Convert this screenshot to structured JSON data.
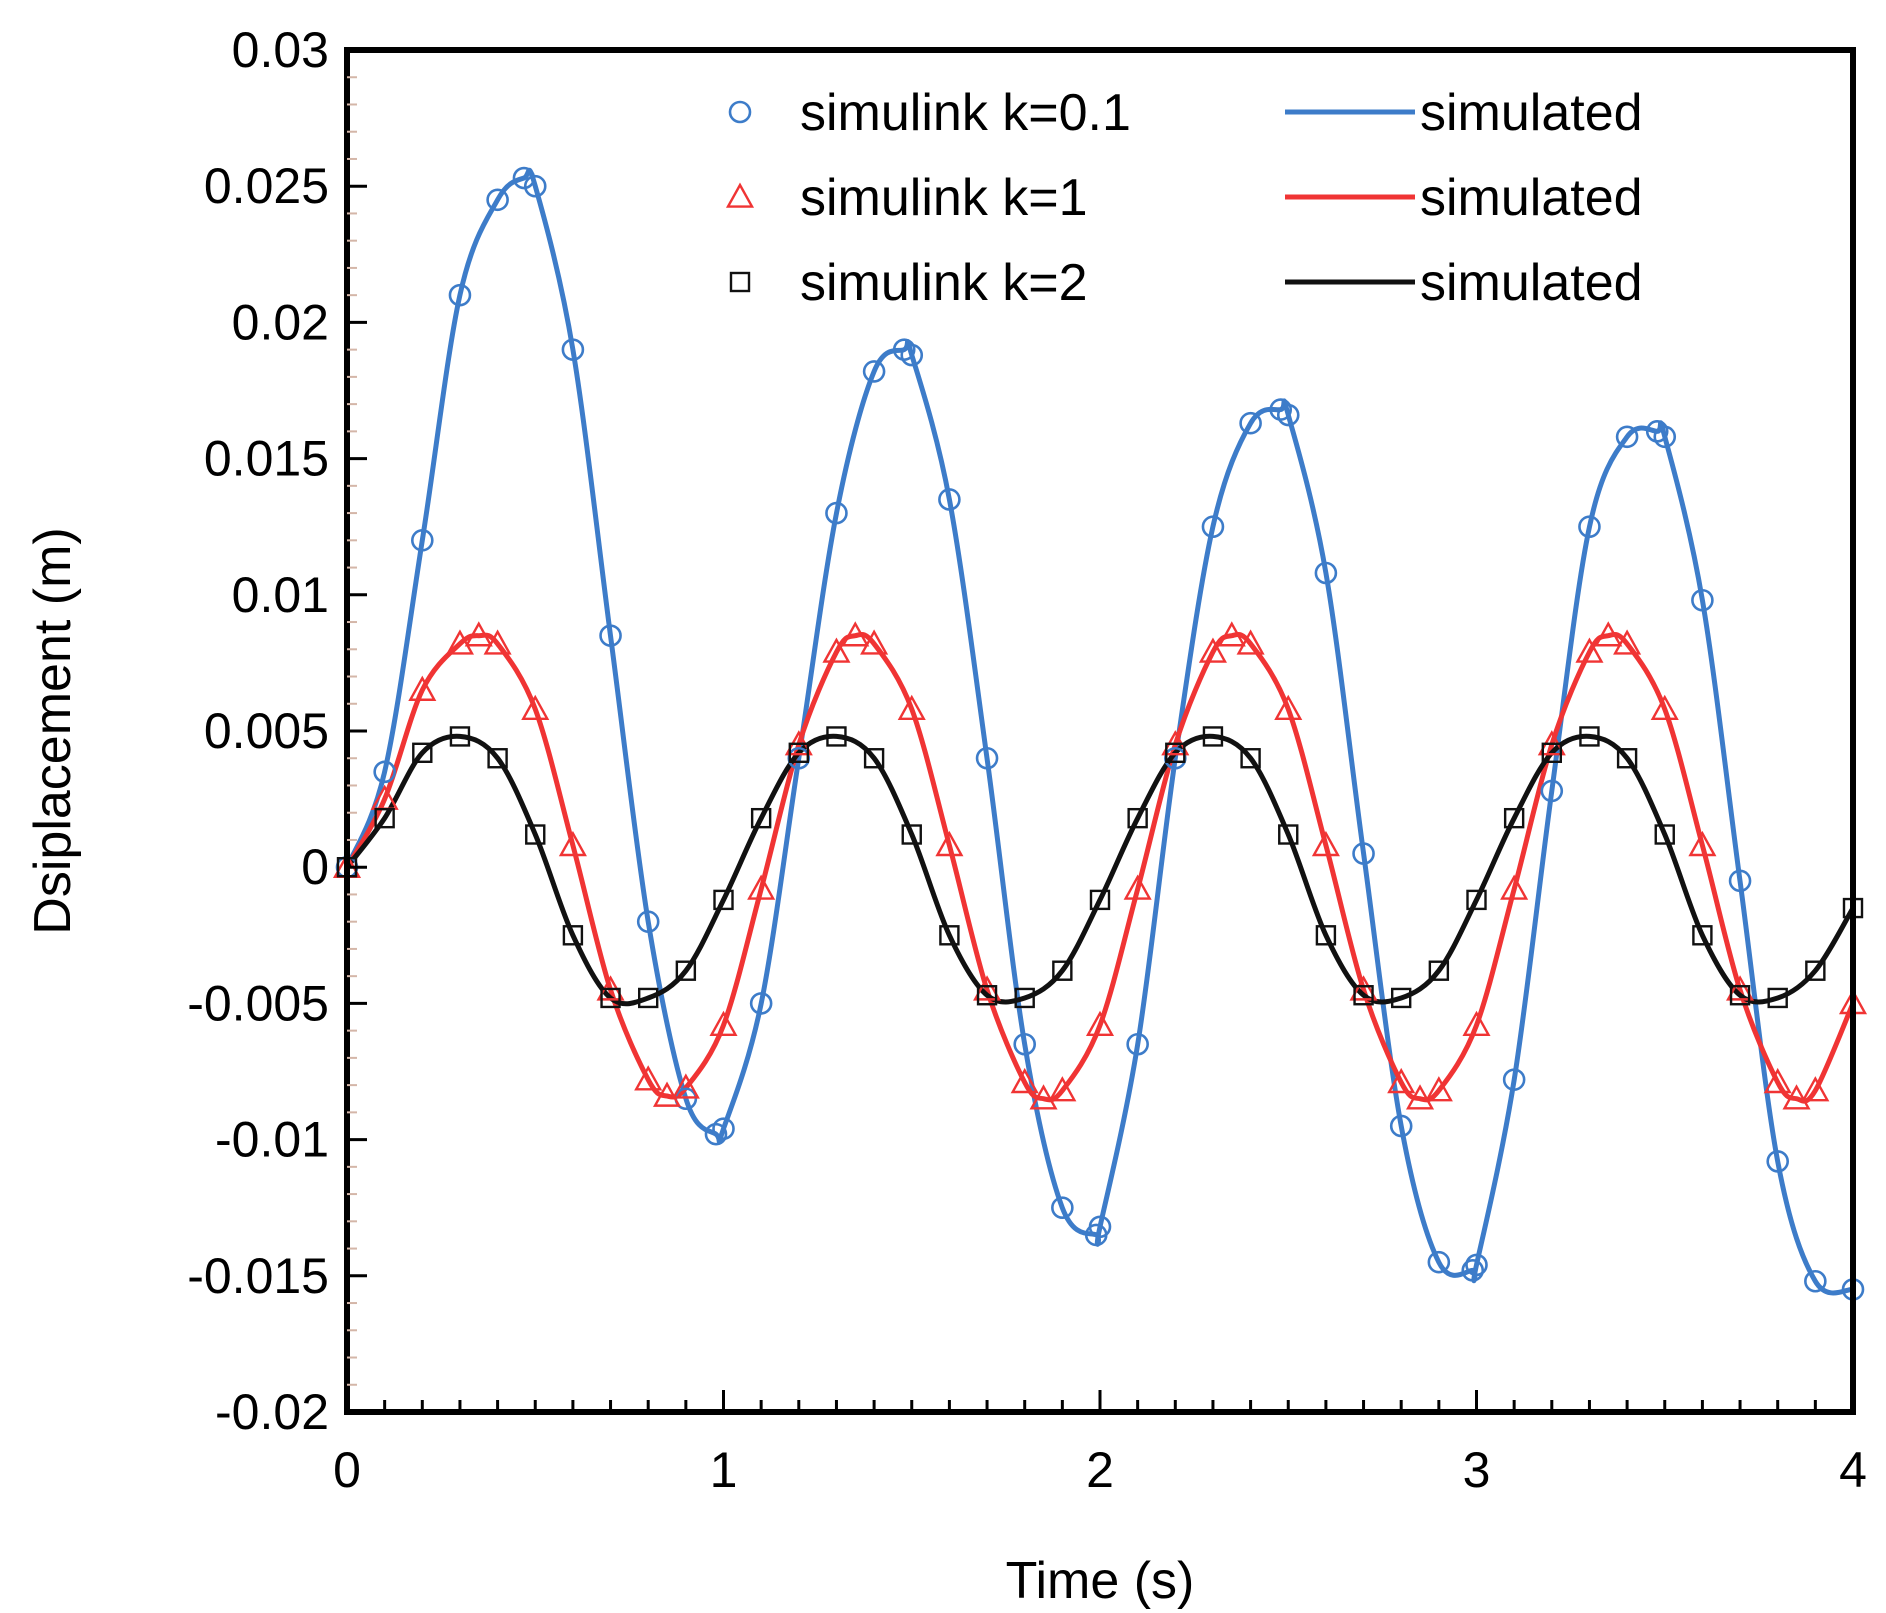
{
  "chart_data": {
    "type": "line",
    "xlabel": "Time (s)",
    "ylabel": "Dsiplacement (m)",
    "xlim": [
      0,
      4
    ],
    "ylim": [
      -0.02,
      0.03
    ],
    "x_ticks": [
      0,
      1,
      2,
      3,
      4
    ],
    "x_tick_labels": [
      "0",
      "1",
      "2",
      "3",
      "4"
    ],
    "y_ticks": [
      0.03,
      0.025,
      0.02,
      0.015,
      0.01,
      0.005,
      0,
      -0.005,
      -0.01,
      -0.015,
      -0.02
    ],
    "y_tick_labels": [
      "0.03",
      "0.025",
      "0.02",
      "0.015",
      "0.01",
      "0.005",
      "0",
      "-0.005",
      "-0.01",
      "-0.015",
      "-0.02"
    ],
    "grid": false,
    "legend_position": "top-right",
    "colors": {
      "blue": "#3d7cc9",
      "red": "#f03434",
      "black": "#111111"
    },
    "series": [
      {
        "name": "simulink k=0.1",
        "kind": "markers",
        "marker": "circle",
        "color": "#3d7cc9",
        "x": [
          0,
          0.1,
          0.2,
          0.3,
          0.4,
          0.47,
          0.5,
          0.6,
          0.7,
          0.8,
          0.9,
          0.98,
          1.0,
          1.1,
          1.2,
          1.3,
          1.4,
          1.48,
          1.5,
          1.6,
          1.7,
          1.8,
          1.9,
          1.99,
          2.0,
          2.1,
          2.2,
          2.3,
          2.4,
          2.48,
          2.5,
          2.6,
          2.7,
          2.8,
          2.9,
          2.99,
          3.0,
          3.1,
          3.2,
          3.3,
          3.4,
          3.48,
          3.5,
          3.6,
          3.7,
          3.8,
          3.9,
          4.0
        ],
        "y": [
          0,
          0.0035,
          0.012,
          0.021,
          0.0245,
          0.0253,
          0.025,
          0.019,
          0.0085,
          -0.002,
          -0.0085,
          -0.0098,
          -0.0096,
          -0.005,
          0.004,
          0.013,
          0.0182,
          0.019,
          0.0188,
          0.0135,
          0.004,
          -0.0065,
          -0.0125,
          -0.0135,
          -0.0132,
          -0.0065,
          0.004,
          0.0125,
          0.0163,
          0.0168,
          0.0166,
          0.0108,
          0.0005,
          -0.0095,
          -0.0145,
          -0.0148,
          -0.0146,
          -0.0078,
          0.0028,
          0.0125,
          0.0158,
          0.016,
          0.0158,
          0.0098,
          -0.0005,
          -0.0108,
          -0.0152,
          -0.0155
        ]
      },
      {
        "name": "simulated",
        "kind": "line",
        "color": "#3d7cc9",
        "x": [
          0,
          0.1,
          0.2,
          0.3,
          0.4,
          0.47,
          0.5,
          0.6,
          0.7,
          0.8,
          0.9,
          0.98,
          1.0,
          1.1,
          1.2,
          1.3,
          1.4,
          1.48,
          1.5,
          1.6,
          1.7,
          1.8,
          1.9,
          1.99,
          2.0,
          2.1,
          2.2,
          2.3,
          2.4,
          2.48,
          2.5,
          2.6,
          2.7,
          2.8,
          2.9,
          2.99,
          3.0,
          3.1,
          3.2,
          3.3,
          3.4,
          3.48,
          3.5,
          3.6,
          3.7,
          3.8,
          3.9,
          4.0
        ],
        "y": [
          0,
          0.0035,
          0.012,
          0.021,
          0.0245,
          0.0253,
          0.025,
          0.019,
          0.0085,
          -0.002,
          -0.0085,
          -0.0098,
          -0.0096,
          -0.005,
          0.004,
          0.013,
          0.0182,
          0.019,
          0.0188,
          0.0135,
          0.004,
          -0.0065,
          -0.0125,
          -0.0135,
          -0.0132,
          -0.0065,
          0.004,
          0.0125,
          0.0163,
          0.0168,
          0.0166,
          0.0108,
          0.0005,
          -0.0095,
          -0.0145,
          -0.0148,
          -0.0146,
          -0.0078,
          0.0028,
          0.0125,
          0.0158,
          0.016,
          0.0158,
          0.0098,
          -0.0005,
          -0.0108,
          -0.0152,
          -0.0155
        ]
      },
      {
        "name": "simulink k=1",
        "kind": "markers",
        "marker": "triangle",
        "color": "#f03434",
        "x": [
          0,
          0.1,
          0.2,
          0.3,
          0.35,
          0.4,
          0.5,
          0.6,
          0.7,
          0.8,
          0.85,
          0.9,
          1.0,
          1.1,
          1.2,
          1.3,
          1.35,
          1.4,
          1.5,
          1.6,
          1.7,
          1.8,
          1.85,
          1.9,
          2.0,
          2.1,
          2.2,
          2.3,
          2.35,
          2.4,
          2.5,
          2.6,
          2.7,
          2.8,
          2.85,
          2.9,
          3.0,
          3.1,
          3.2,
          3.3,
          3.35,
          3.4,
          3.5,
          3.6,
          3.7,
          3.8,
          3.85,
          3.9,
          4.0
        ],
        "y": [
          0,
          0.0025,
          0.0065,
          0.0082,
          0.0085,
          0.0082,
          0.0058,
          0.0008,
          -0.0045,
          -0.0078,
          -0.0084,
          -0.0081,
          -0.0058,
          -0.0008,
          0.0045,
          0.0079,
          0.0085,
          0.0082,
          0.0058,
          0.0008,
          -0.0045,
          -0.0079,
          -0.0085,
          -0.0082,
          -0.0058,
          -0.0008,
          0.0045,
          0.0079,
          0.0085,
          0.0082,
          0.0058,
          0.0008,
          -0.0045,
          -0.0079,
          -0.0085,
          -0.0082,
          -0.0058,
          -0.0008,
          0.0045,
          0.0079,
          0.0085,
          0.0082,
          0.0058,
          0.0008,
          -0.0045,
          -0.0079,
          -0.0085,
          -0.0082,
          -0.005
        ]
      },
      {
        "name": "simulated",
        "kind": "line",
        "color": "#f03434",
        "x": [
          0,
          0.1,
          0.2,
          0.3,
          0.35,
          0.4,
          0.5,
          0.6,
          0.7,
          0.8,
          0.85,
          0.9,
          1.0,
          1.1,
          1.2,
          1.3,
          1.35,
          1.4,
          1.5,
          1.6,
          1.7,
          1.8,
          1.85,
          1.9,
          2.0,
          2.1,
          2.2,
          2.3,
          2.35,
          2.4,
          2.5,
          2.6,
          2.7,
          2.8,
          2.85,
          2.9,
          3.0,
          3.1,
          3.2,
          3.3,
          3.35,
          3.4,
          3.5,
          3.6,
          3.7,
          3.8,
          3.85,
          3.9,
          4.0
        ],
        "y": [
          0,
          0.0025,
          0.0065,
          0.0082,
          0.0085,
          0.0082,
          0.0058,
          0.0008,
          -0.0045,
          -0.0078,
          -0.0084,
          -0.0081,
          -0.0058,
          -0.0008,
          0.0045,
          0.0079,
          0.0085,
          0.0082,
          0.0058,
          0.0008,
          -0.0045,
          -0.0079,
          -0.0085,
          -0.0082,
          -0.0058,
          -0.0008,
          0.0045,
          0.0079,
          0.0085,
          0.0082,
          0.0058,
          0.0008,
          -0.0045,
          -0.0079,
          -0.0085,
          -0.0082,
          -0.0058,
          -0.0008,
          0.0045,
          0.0079,
          0.0085,
          0.0082,
          0.0058,
          0.0008,
          -0.0045,
          -0.0079,
          -0.0085,
          -0.0082,
          -0.005
        ]
      },
      {
        "name": "simulink k=2",
        "kind": "markers",
        "marker": "square",
        "color": "#111111",
        "x": [
          0,
          0.1,
          0.2,
          0.3,
          0.4,
          0.5,
          0.6,
          0.7,
          0.8,
          0.9,
          1.0,
          1.1,
          1.2,
          1.3,
          1.4,
          1.5,
          1.6,
          1.7,
          1.8,
          1.9,
          2.0,
          2.1,
          2.2,
          2.3,
          2.4,
          2.5,
          2.6,
          2.7,
          2.8,
          2.9,
          3.0,
          3.1,
          3.2,
          3.3,
          3.4,
          3.5,
          3.6,
          3.7,
          3.8,
          3.9,
          4.0
        ],
        "y": [
          0,
          0.0018,
          0.0042,
          0.0048,
          0.004,
          0.0012,
          -0.0025,
          -0.0048,
          -0.0048,
          -0.0038,
          -0.0012,
          0.0018,
          0.0042,
          0.0048,
          0.004,
          0.0012,
          -0.0025,
          -0.0047,
          -0.0048,
          -0.0038,
          -0.0012,
          0.0018,
          0.0042,
          0.0048,
          0.004,
          0.0012,
          -0.0025,
          -0.0047,
          -0.0048,
          -0.0038,
          -0.0012,
          0.0018,
          0.0042,
          0.0048,
          0.004,
          0.0012,
          -0.0025,
          -0.0047,
          -0.0048,
          -0.0038,
          -0.0015
        ]
      },
      {
        "name": "simulated",
        "kind": "line",
        "color": "#111111",
        "x": [
          0,
          0.1,
          0.2,
          0.3,
          0.4,
          0.5,
          0.6,
          0.7,
          0.8,
          0.9,
          1.0,
          1.1,
          1.2,
          1.3,
          1.4,
          1.5,
          1.6,
          1.7,
          1.8,
          1.9,
          2.0,
          2.1,
          2.2,
          2.3,
          2.4,
          2.5,
          2.6,
          2.7,
          2.8,
          2.9,
          3.0,
          3.1,
          3.2,
          3.3,
          3.4,
          3.5,
          3.6,
          3.7,
          3.8,
          3.9,
          4.0
        ],
        "y": [
          0,
          0.0018,
          0.0042,
          0.0048,
          0.004,
          0.0012,
          -0.0025,
          -0.0048,
          -0.0048,
          -0.0038,
          -0.0012,
          0.0018,
          0.0042,
          0.0048,
          0.004,
          0.0012,
          -0.0025,
          -0.0047,
          -0.0048,
          -0.0038,
          -0.0012,
          0.0018,
          0.0042,
          0.0048,
          0.004,
          0.0012,
          -0.0025,
          -0.0047,
          -0.0048,
          -0.0038,
          -0.0012,
          0.0018,
          0.0042,
          0.0048,
          0.004,
          0.0012,
          -0.0025,
          -0.0047,
          -0.0048,
          -0.0038,
          -0.0015
        ]
      }
    ],
    "legend": [
      {
        "marker_label": "simulink k=0.1",
        "marker": "circle",
        "line_label": "simulated",
        "color": "#3d7cc9"
      },
      {
        "marker_label": "simulink k=1",
        "marker": "triangle",
        "line_label": "simulated",
        "color": "#f03434"
      },
      {
        "marker_label": "simulink k=2",
        "marker": "square",
        "line_label": "simulated",
        "color": "#111111"
      }
    ]
  }
}
